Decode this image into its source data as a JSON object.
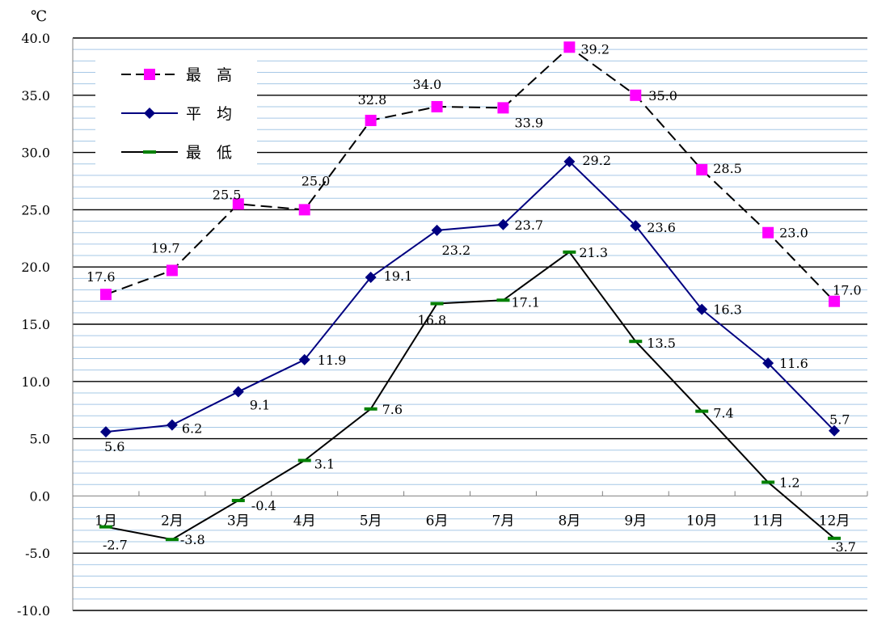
{
  "chart_data": {
    "type": "line",
    "unit_label": "℃",
    "categories": [
      "1月",
      "2月",
      "3月",
      "4月",
      "5月",
      "6月",
      "7月",
      "8月",
      "9月",
      "10月",
      "11月",
      "12月"
    ],
    "ylim": [
      -10,
      40
    ],
    "y_major_step": 5,
    "y_minor_step": 1,
    "y_tick_labels": [
      "-10.0",
      "-5.0",
      "0.0",
      "5.0",
      "10.0",
      "15.0",
      "20.0",
      "25.0",
      "30.0",
      "35.0",
      "40.0"
    ],
    "grid": true,
    "legend_position": "top-left",
    "series": [
      {
        "name": "最　高",
        "color": "#000000",
        "marker_color": "#ff00ff",
        "marker": "square",
        "line_style": "dashed",
        "values": [
          17.6,
          19.7,
          25.5,
          25.0,
          32.8,
          34.0,
          33.9,
          39.2,
          35.0,
          28.5,
          23.0,
          17.0
        ],
        "labels": [
          "17.6",
          "19.7",
          "25.5",
          "25.0",
          "32.8",
          "34.0",
          "33.9",
          "39.2",
          "35.0",
          "28.5",
          "23.0",
          "17.0"
        ]
      },
      {
        "name": "平　均",
        "color": "#000080",
        "marker_color": "#000080",
        "marker": "diamond",
        "line_style": "solid",
        "values": [
          5.6,
          6.2,
          9.1,
          11.9,
          19.1,
          23.2,
          23.7,
          29.2,
          23.6,
          16.3,
          11.6,
          5.7
        ],
        "labels": [
          "5.6",
          "6.2",
          "9.1",
          "11.9",
          "19.1",
          "23.2",
          "23.7",
          "29.2",
          "23.6",
          "16.3",
          "11.6",
          "5.7"
        ]
      },
      {
        "name": "最　低",
        "color": "#000000",
        "marker_color": "#008000",
        "marker": "dash",
        "line_style": "solid",
        "values": [
          -2.7,
          -3.8,
          -0.4,
          3.1,
          7.6,
          16.8,
          17.1,
          21.3,
          13.5,
          7.4,
          1.2,
          -3.7
        ],
        "labels": [
          "-2.7",
          "-3.8",
          "-0.4",
          "3.1",
          "7.6",
          "16.8",
          "17.1",
          "21.3",
          "13.5",
          "7.4",
          "1.2",
          "-3.7"
        ]
      }
    ]
  }
}
